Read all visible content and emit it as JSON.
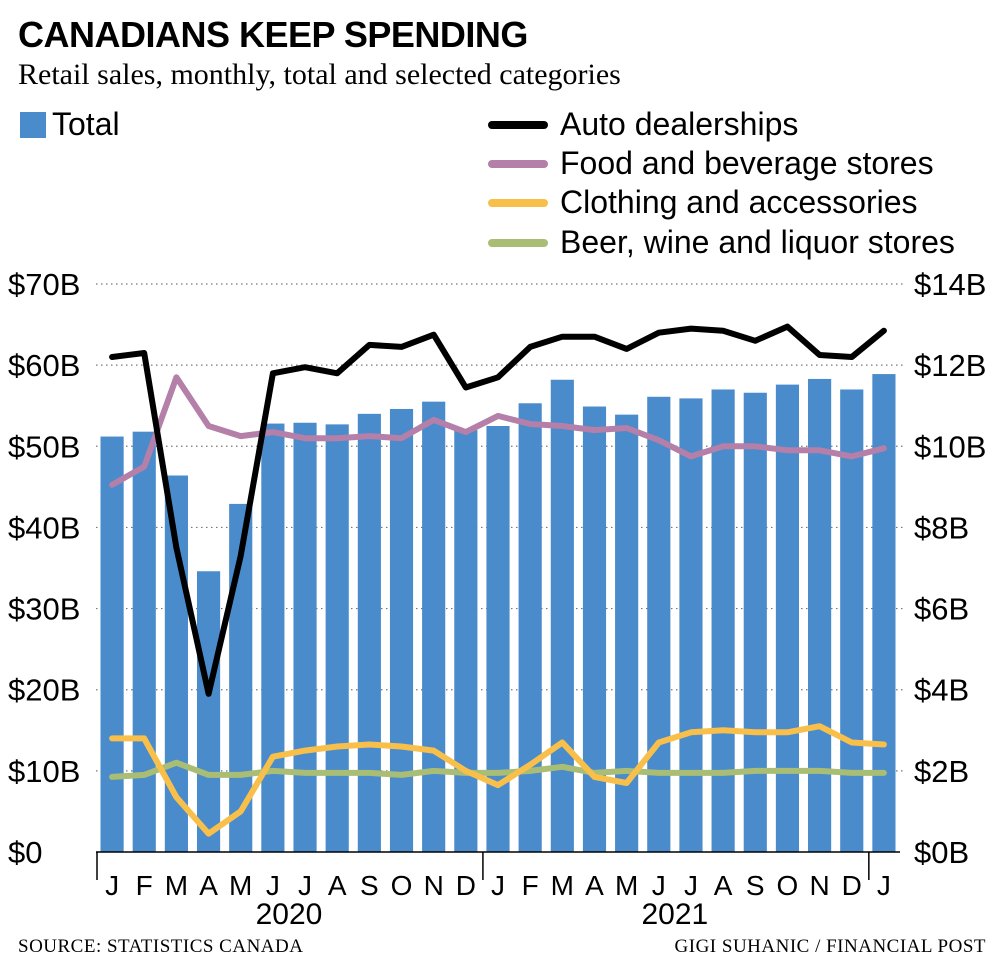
{
  "header": {
    "title": "CANADIANS KEEP SPENDING",
    "subtitle": "Retail sales, monthly, total and selected categories"
  },
  "legend": {
    "total": "Total",
    "auto": "Auto dealerships",
    "food": "Food and beverage stores",
    "clothing": "Clothing and accessories",
    "liquor": "Beer, wine and liquor stores"
  },
  "footer": {
    "source": "SOURCE: STATISTICS CANADA",
    "credit": "GIGI SUHANIC / FINANCIAL POST"
  },
  "colors": {
    "total": "#4a8bcb",
    "auto": "#000000",
    "food": "#b47fa8",
    "clothing": "#f8c04a",
    "liquor": "#a9be74"
  },
  "chart_data": {
    "type": "bar",
    "categories": [
      "J",
      "F",
      "M",
      "A",
      "M",
      "J",
      "J",
      "A",
      "S",
      "O",
      "N",
      "D",
      "J",
      "F",
      "M",
      "A",
      "M",
      "J",
      "J",
      "A",
      "S",
      "O",
      "N",
      "D",
      "J"
    ],
    "years": [
      {
        "label": "2020",
        "start": 0,
        "end": 11
      },
      {
        "label": "2021",
        "start": 12,
        "end": 23
      }
    ],
    "left_axis": {
      "ylim": [
        0,
        70
      ],
      "ticks": [
        0,
        10,
        20,
        30,
        40,
        50,
        60,
        70
      ],
      "tick_labels": [
        "$0",
        "$10B",
        "$20B",
        "$30B",
        "$40B",
        "$50B",
        "$60B",
        "$70B"
      ]
    },
    "right_axis": {
      "ylim": [
        0,
        14
      ],
      "ticks": [
        0,
        2,
        4,
        6,
        8,
        10,
        12,
        14
      ],
      "tick_labels": [
        "$0B",
        "$2B",
        "$4B",
        "$6B",
        "$8B",
        "$10B",
        "$12B",
        "$14B"
      ]
    },
    "grid": "dotted horizontal",
    "series": [
      {
        "name": "Total",
        "type": "bar",
        "axis": "left",
        "values": [
          51.2,
          51.8,
          46.4,
          34.6,
          42.9,
          52.8,
          52.9,
          52.7,
          54.0,
          54.6,
          55.5,
          52.0,
          52.5,
          55.3,
          58.2,
          54.9,
          53.9,
          56.1,
          55.9,
          57.0,
          56.6,
          57.6,
          58.3,
          57.0,
          58.9
        ]
      },
      {
        "name": "Auto dealerships",
        "type": "line",
        "axis": "right",
        "values": [
          12.2,
          12.3,
          7.5,
          3.9,
          7.3,
          11.8,
          11.95,
          11.8,
          12.5,
          12.45,
          12.75,
          11.45,
          11.7,
          12.45,
          12.7,
          12.7,
          12.4,
          12.8,
          12.9,
          12.85,
          12.6,
          12.95,
          12.25,
          12.2,
          12.85
        ]
      },
      {
        "name": "Food and beverage stores",
        "type": "line",
        "axis": "right",
        "values": [
          9.05,
          9.5,
          11.7,
          10.5,
          10.25,
          10.35,
          10.2,
          10.2,
          10.25,
          10.2,
          10.65,
          10.35,
          10.75,
          10.55,
          10.5,
          10.4,
          10.45,
          10.15,
          9.75,
          10.0,
          10.0,
          9.9,
          9.9,
          9.75,
          9.95
        ]
      },
      {
        "name": "Clothing and accessories",
        "type": "line",
        "axis": "right",
        "values": [
          2.8,
          2.8,
          1.35,
          0.45,
          1.0,
          2.35,
          2.5,
          2.6,
          2.65,
          2.6,
          2.5,
          2.0,
          1.65,
          2.15,
          2.7,
          1.85,
          1.7,
          2.7,
          2.95,
          3.0,
          2.95,
          2.95,
          3.1,
          2.7,
          2.65
        ]
      },
      {
        "name": "Beer, wine and liquor stores",
        "type": "line",
        "axis": "right",
        "values": [
          1.85,
          1.9,
          2.2,
          1.9,
          1.9,
          2.0,
          1.95,
          1.95,
          1.95,
          1.9,
          2.0,
          1.95,
          1.95,
          2.0,
          2.1,
          1.95,
          2.0,
          1.95,
          1.95,
          1.95,
          2.0,
          2.0,
          2.0,
          1.95,
          1.95
        ]
      }
    ]
  }
}
